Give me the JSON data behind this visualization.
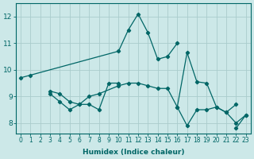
{
  "xlabel": "Humidex (Indice chaleur)",
  "ylabel": "",
  "background_color": "#cce8e8",
  "grid_color": "#aacccc",
  "line_color": "#006666",
  "xlim": [
    -0.5,
    23.5
  ],
  "ylim": [
    7.6,
    12.5
  ],
  "yticks": [
    8,
    9,
    10,
    11,
    12
  ],
  "xticks": [
    0,
    1,
    2,
    3,
    4,
    5,
    6,
    7,
    8,
    9,
    10,
    11,
    12,
    13,
    14,
    15,
    16,
    17,
    18,
    19,
    20,
    21,
    22,
    23
  ],
  "series": [
    {
      "x": [
        0,
        1,
        10,
        11,
        12,
        13,
        14,
        15,
        16
      ],
      "y": [
        9.7,
        9.8,
        10.7,
        11.5,
        12.1,
        11.4,
        10.4,
        10.5,
        11.0
      ]
    },
    {
      "x": [
        3,
        4,
        5,
        6,
        7,
        8,
        9,
        10
      ],
      "y": [
        9.2,
        9.1,
        8.8,
        8.7,
        8.7,
        8.5,
        9.5,
        9.5
      ]
    },
    {
      "x": [
        3,
        4,
        5,
        6,
        7,
        8,
        10,
        11,
        12,
        13,
        14,
        15,
        16,
        17,
        18,
        19,
        20,
        21,
        22,
        23
      ],
      "y": [
        9.1,
        8.8,
        8.5,
        8.7,
        9.0,
        9.1,
        9.4,
        9.5,
        9.5,
        9.4,
        9.3,
        9.3,
        8.6,
        7.9,
        8.5,
        8.5,
        8.6,
        8.4,
        8.0,
        8.3
      ]
    },
    {
      "x": [
        16,
        17,
        18,
        19,
        20,
        21,
        22
      ],
      "y": [
        8.6,
        10.65,
        9.55,
        9.5,
        8.6,
        8.4,
        8.7
      ]
    },
    {
      "x": [
        22,
        23
      ],
      "y": [
        7.8,
        8.3
      ]
    }
  ]
}
